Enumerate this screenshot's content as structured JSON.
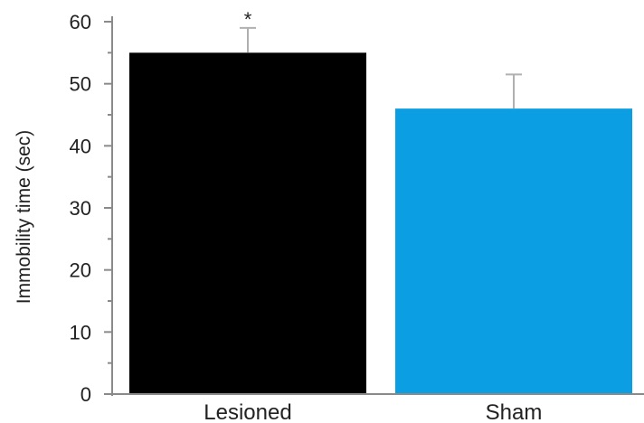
{
  "chart_data": {
    "type": "bar",
    "categories": [
      "Lesioned",
      "Sham"
    ],
    "values": [
      55,
      46
    ],
    "error_upper": [
      59,
      51.5
    ],
    "colors": [
      "#000000",
      "#0b9ee3"
    ],
    "significance": [
      "*",
      ""
    ],
    "ylabel": "Immobility time (sec)",
    "xlabel": "",
    "title": "",
    "ylim": [
      0,
      60
    ],
    "yticks": [
      0,
      10,
      20,
      30,
      40,
      50,
      60
    ],
    "grid": false,
    "legend": "none"
  }
}
